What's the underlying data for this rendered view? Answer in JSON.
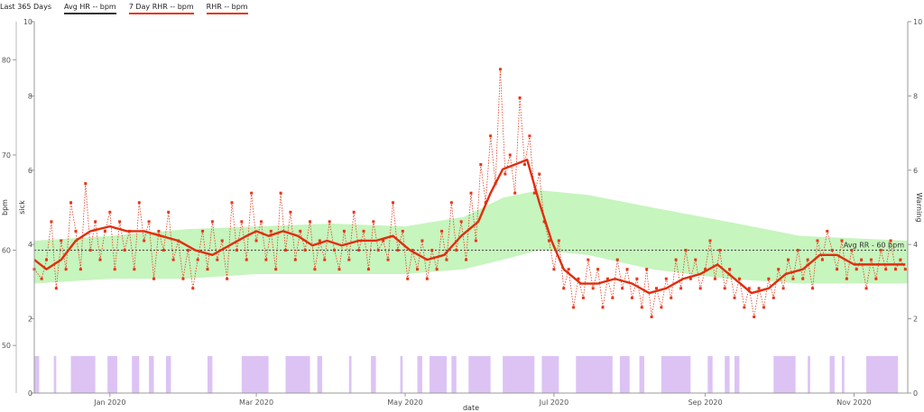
{
  "legend": {
    "period": "Last 365 Days",
    "items": [
      {
        "label": "Avg HR -- bpm",
        "color": "#333333"
      },
      {
        "label": "7 Day RHR -- bpm",
        "color": "#e8351a"
      },
      {
        "label": "RHR -- bpm",
        "color": "#e8351a"
      }
    ]
  },
  "annotation": {
    "text": "Avg RR - 60 bpm",
    "value": 60
  },
  "colors": {
    "rhr": "#e8351a",
    "smooth": "#e02e0e",
    "band": "#c6f5bd",
    "sick": "#dcc3f4",
    "avg": "#444444"
  },
  "chart_data": {
    "type": "line",
    "xlabel": "date",
    "ylabel_left": "bpm",
    "ylabel_left2": "sick",
    "ylabel_right": "Warning",
    "x_range": [
      "2019-12-01",
      "2020-11-23"
    ],
    "x_ticks": [
      "2020-01-01",
      "2020-03-01",
      "2020-05-01",
      "2020-07-01",
      "2020-09-01",
      "2020-11-01"
    ],
    "x_tick_labels": [
      "Jan 2020",
      "Mar 2020",
      "May 2020",
      "Jul 2020",
      "Sep 2020",
      "Nov 2020"
    ],
    "bpm_axis": {
      "range": [
        45,
        84
      ],
      "ticks": [
        50,
        60,
        70,
        80
      ]
    },
    "sick_axis": {
      "range": [
        0,
        10
      ],
      "ticks": [
        0,
        2,
        4,
        6,
        8,
        10
      ]
    },
    "warning_axis": {
      "range": [
        0,
        10
      ],
      "ticks": [
        0,
        2,
        4,
        6,
        8,
        10
      ]
    },
    "avg_rr_bpm": 60,
    "rhr": [
      [
        "2019-12-01",
        58
      ],
      [
        "2019-12-04",
        57
      ],
      [
        "2019-12-06",
        59
      ],
      [
        "2019-12-08",
        63
      ],
      [
        "2019-12-10",
        56
      ],
      [
        "2019-12-12",
        61
      ],
      [
        "2019-12-14",
        58
      ],
      [
        "2019-12-16",
        65
      ],
      [
        "2019-12-18",
        62
      ],
      [
        "2019-12-20",
        58
      ],
      [
        "2019-12-22",
        67
      ],
      [
        "2019-12-24",
        60
      ],
      [
        "2019-12-26",
        63
      ],
      [
        "2019-12-28",
        59
      ],
      [
        "2019-12-30",
        62
      ],
      [
        "2020-01-01",
        64
      ],
      [
        "2020-01-03",
        58
      ],
      [
        "2020-01-05",
        63
      ],
      [
        "2020-01-07",
        60
      ],
      [
        "2020-01-09",
        62
      ],
      [
        "2020-01-11",
        58
      ],
      [
        "2020-01-13",
        65
      ],
      [
        "2020-01-15",
        61
      ],
      [
        "2020-01-17",
        63
      ],
      [
        "2020-01-19",
        57
      ],
      [
        "2020-01-21",
        62
      ],
      [
        "2020-01-23",
        60
      ],
      [
        "2020-01-25",
        64
      ],
      [
        "2020-01-27",
        59
      ],
      [
        "2020-01-29",
        61
      ],
      [
        "2020-01-31",
        57
      ],
      [
        "2020-02-02",
        60
      ],
      [
        "2020-02-04",
        56
      ],
      [
        "2020-02-06",
        59
      ],
      [
        "2020-02-08",
        62
      ],
      [
        "2020-02-10",
        58
      ],
      [
        "2020-02-12",
        63
      ],
      [
        "2020-02-14",
        59
      ],
      [
        "2020-02-16",
        61
      ],
      [
        "2020-02-18",
        57
      ],
      [
        "2020-02-20",
        65
      ],
      [
        "2020-02-22",
        60
      ],
      [
        "2020-02-24",
        63
      ],
      [
        "2020-02-26",
        59
      ],
      [
        "2020-02-28",
        66
      ],
      [
        "2020-03-01",
        61
      ],
      [
        "2020-03-03",
        63
      ],
      [
        "2020-03-05",
        59
      ],
      [
        "2020-03-07",
        62
      ],
      [
        "2020-03-09",
        58
      ],
      [
        "2020-03-11",
        66
      ],
      [
        "2020-03-13",
        60
      ],
      [
        "2020-03-15",
        64
      ],
      [
        "2020-03-17",
        59
      ],
      [
        "2020-03-19",
        62
      ],
      [
        "2020-03-21",
        60
      ],
      [
        "2020-03-23",
        63
      ],
      [
        "2020-03-25",
        58
      ],
      [
        "2020-03-27",
        61
      ],
      [
        "2020-03-29",
        59
      ],
      [
        "2020-03-31",
        63
      ],
      [
        "2020-04-02",
        60
      ],
      [
        "2020-04-04",
        58
      ],
      [
        "2020-04-06",
        62
      ],
      [
        "2020-04-08",
        59
      ],
      [
        "2020-04-10",
        64
      ],
      [
        "2020-04-12",
        60
      ],
      [
        "2020-04-14",
        62
      ],
      [
        "2020-04-16",
        58
      ],
      [
        "2020-04-18",
        63
      ],
      [
        "2020-04-20",
        60
      ],
      [
        "2020-04-22",
        61
      ],
      [
        "2020-04-24",
        59
      ],
      [
        "2020-04-26",
        65
      ],
      [
        "2020-04-28",
        60
      ],
      [
        "2020-04-30",
        62
      ],
      [
        "2020-05-02",
        57
      ],
      [
        "2020-05-04",
        60
      ],
      [
        "2020-05-06",
        58
      ],
      [
        "2020-05-08",
        61
      ],
      [
        "2020-05-10",
        57
      ],
      [
        "2020-05-12",
        60
      ],
      [
        "2020-05-14",
        58
      ],
      [
        "2020-05-16",
        62
      ],
      [
        "2020-05-18",
        59
      ],
      [
        "2020-05-20",
        65
      ],
      [
        "2020-05-22",
        60
      ],
      [
        "2020-05-24",
        63
      ],
      [
        "2020-05-26",
        59
      ],
      [
        "2020-05-28",
        66
      ],
      [
        "2020-05-30",
        61
      ],
      [
        "2020-06-01",
        69
      ],
      [
        "2020-06-03",
        65
      ],
      [
        "2020-06-05",
        72
      ],
      [
        "2020-06-07",
        67
      ],
      [
        "2020-06-09",
        79
      ],
      [
        "2020-06-11",
        68
      ],
      [
        "2020-06-13",
        70
      ],
      [
        "2020-06-15",
        66
      ],
      [
        "2020-06-17",
        76
      ],
      [
        "2020-06-19",
        69
      ],
      [
        "2020-06-21",
        72
      ],
      [
        "2020-06-23",
        66
      ],
      [
        "2020-06-25",
        68
      ],
      [
        "2020-06-27",
        63
      ],
      [
        "2020-06-29",
        61
      ],
      [
        "2020-07-01",
        58
      ],
      [
        "2020-07-03",
        61
      ],
      [
        "2020-07-05",
        56
      ],
      [
        "2020-07-07",
        58
      ],
      [
        "2020-07-09",
        54
      ],
      [
        "2020-07-11",
        57
      ],
      [
        "2020-07-13",
        55
      ],
      [
        "2020-07-15",
        59
      ],
      [
        "2020-07-17",
        56
      ],
      [
        "2020-07-19",
        58
      ],
      [
        "2020-07-21",
        54
      ],
      [
        "2020-07-23",
        57
      ],
      [
        "2020-07-25",
        55
      ],
      [
        "2020-07-27",
        59
      ],
      [
        "2020-07-29",
        56
      ],
      [
        "2020-07-31",
        58
      ],
      [
        "2020-08-02",
        55
      ],
      [
        "2020-08-04",
        57
      ],
      [
        "2020-08-06",
        54
      ],
      [
        "2020-08-08",
        58
      ],
      [
        "2020-08-10",
        53
      ],
      [
        "2020-08-12",
        56
      ],
      [
        "2020-08-14",
        54
      ],
      [
        "2020-08-16",
        57
      ],
      [
        "2020-08-18",
        55
      ],
      [
        "2020-08-20",
        59
      ],
      [
        "2020-08-22",
        56
      ],
      [
        "2020-08-24",
        60
      ],
      [
        "2020-08-26",
        57
      ],
      [
        "2020-08-28",
        59
      ],
      [
        "2020-08-30",
        56
      ],
      [
        "2020-09-01",
        58
      ],
      [
        "2020-09-03",
        61
      ],
      [
        "2020-09-05",
        57
      ],
      [
        "2020-09-07",
        60
      ],
      [
        "2020-09-09",
        56
      ],
      [
        "2020-09-11",
        58
      ],
      [
        "2020-09-13",
        55
      ],
      [
        "2020-09-15",
        57
      ],
      [
        "2020-09-17",
        54
      ],
      [
        "2020-09-19",
        56
      ],
      [
        "2020-09-21",
        53
      ],
      [
        "2020-09-23",
        56
      ],
      [
        "2020-09-25",
        54
      ],
      [
        "2020-09-27",
        57
      ],
      [
        "2020-09-29",
        55
      ],
      [
        "2020-10-01",
        58
      ],
      [
        "2020-10-03",
        56
      ],
      [
        "2020-10-05",
        59
      ],
      [
        "2020-10-07",
        57
      ],
      [
        "2020-10-09",
        60
      ],
      [
        "2020-10-11",
        57
      ],
      [
        "2020-10-13",
        59
      ],
      [
        "2020-10-15",
        56
      ],
      [
        "2020-10-17",
        61
      ],
      [
        "2020-10-19",
        59
      ],
      [
        "2020-10-21",
        62
      ],
      [
        "2020-10-23",
        60
      ],
      [
        "2020-10-25",
        58
      ],
      [
        "2020-10-27",
        61
      ],
      [
        "2020-10-29",
        57
      ],
      [
        "2020-10-31",
        60
      ],
      [
        "2020-11-02",
        58
      ],
      [
        "2020-11-04",
        59
      ],
      [
        "2020-11-06",
        56
      ],
      [
        "2020-11-08",
        59
      ],
      [
        "2020-11-10",
        57
      ],
      [
        "2020-11-12",
        60
      ],
      [
        "2020-11-14",
        58
      ],
      [
        "2020-11-16",
        61
      ],
      [
        "2020-11-18",
        58
      ],
      [
        "2020-11-20",
        59
      ],
      [
        "2020-11-22",
        58
      ]
    ],
    "rhr_7day": [
      [
        "2019-12-01",
        59
      ],
      [
        "2019-12-06",
        58
      ],
      [
        "2019-12-12",
        59
      ],
      [
        "2019-12-18",
        61
      ],
      [
        "2019-12-24",
        62
      ],
      [
        "2020-01-01",
        62.5
      ],
      [
        "2020-01-08",
        62
      ],
      [
        "2020-01-15",
        62
      ],
      [
        "2020-01-22",
        61.5
      ],
      [
        "2020-01-29",
        61
      ],
      [
        "2020-02-05",
        60
      ],
      [
        "2020-02-12",
        59.5
      ],
      [
        "2020-02-19",
        60.5
      ],
      [
        "2020-02-26",
        61.5
      ],
      [
        "2020-03-01",
        62
      ],
      [
        "2020-03-06",
        61.5
      ],
      [
        "2020-03-12",
        62
      ],
      [
        "2020-03-18",
        61.5
      ],
      [
        "2020-03-24",
        60.5
      ],
      [
        "2020-03-30",
        61
      ],
      [
        "2020-04-05",
        60.5
      ],
      [
        "2020-04-12",
        61
      ],
      [
        "2020-04-19",
        61
      ],
      [
        "2020-04-26",
        61.5
      ],
      [
        "2020-05-03",
        60
      ],
      [
        "2020-05-10",
        59
      ],
      [
        "2020-05-17",
        59.5
      ],
      [
        "2020-05-24",
        61.5
      ],
      [
        "2020-05-31",
        63
      ],
      [
        "2020-06-05",
        66
      ],
      [
        "2020-06-10",
        68.5
      ],
      [
        "2020-06-15",
        69
      ],
      [
        "2020-06-20",
        69.5
      ],
      [
        "2020-06-25",
        65
      ],
      [
        "2020-06-30",
        61
      ],
      [
        "2020-07-05",
        58
      ],
      [
        "2020-07-12",
        56.5
      ],
      [
        "2020-07-19",
        56.5
      ],
      [
        "2020-07-26",
        57
      ],
      [
        "2020-08-02",
        56.5
      ],
      [
        "2020-08-09",
        55.5
      ],
      [
        "2020-08-16",
        56
      ],
      [
        "2020-08-23",
        57
      ],
      [
        "2020-08-30",
        57.5
      ],
      [
        "2020-09-06",
        58.5
      ],
      [
        "2020-09-13",
        57
      ],
      [
        "2020-09-20",
        55.5
      ],
      [
        "2020-09-27",
        56
      ],
      [
        "2020-10-04",
        57.5
      ],
      [
        "2020-10-11",
        58
      ],
      [
        "2020-10-18",
        59.5
      ],
      [
        "2020-10-25",
        59.5
      ],
      [
        "2020-11-01",
        58.5
      ],
      [
        "2020-11-08",
        58.5
      ],
      [
        "2020-11-15",
        58.5
      ],
      [
        "2020-11-22",
        58.5
      ]
    ],
    "avg_band": [
      [
        "2019-12-01",
        56.5,
        61
      ],
      [
        "2020-01-01",
        57,
        61.5
      ],
      [
        "2020-02-01",
        57,
        62.2
      ],
      [
        "2020-03-01",
        57.5,
        62.5
      ],
      [
        "2020-04-01",
        57.5,
        62.8
      ],
      [
        "2020-05-01",
        57.5,
        62.5
      ],
      [
        "2020-05-25",
        58,
        63.5
      ],
      [
        "2020-06-10",
        59,
        65.5
      ],
      [
        "2020-06-25",
        60,
        66.3
      ],
      [
        "2020-07-15",
        59.5,
        65.8
      ],
      [
        "2020-08-10",
        58,
        64.5
      ],
      [
        "2020-09-10",
        57,
        63
      ],
      [
        "2020-10-10",
        56.5,
        61.5
      ],
      [
        "2020-11-23",
        56.5,
        61
      ]
    ],
    "sick_periods": [
      [
        "2019-12-01",
        "2019-12-03"
      ],
      [
        "2019-12-09",
        "2019-12-10"
      ],
      [
        "2019-12-16",
        "2019-12-26"
      ],
      [
        "2019-12-31",
        "2020-01-04"
      ],
      [
        "2020-01-10",
        "2020-01-13"
      ],
      [
        "2020-01-17",
        "2020-01-19"
      ],
      [
        "2020-01-24",
        "2020-01-26"
      ],
      [
        "2020-02-10",
        "2020-02-12"
      ],
      [
        "2020-02-24",
        "2020-03-06"
      ],
      [
        "2020-03-13",
        "2020-03-23"
      ],
      [
        "2020-03-26",
        "2020-03-28"
      ],
      [
        "2020-04-08",
        "2020-04-09"
      ],
      [
        "2020-04-17",
        "2020-04-19"
      ],
      [
        "2020-04-29",
        "2020-04-30"
      ],
      [
        "2020-05-06",
        "2020-05-08"
      ],
      [
        "2020-05-11",
        "2020-05-18"
      ],
      [
        "2020-05-20",
        "2020-05-22"
      ],
      [
        "2020-05-27",
        "2020-06-05"
      ],
      [
        "2020-06-10",
        "2020-06-23"
      ],
      [
        "2020-06-26",
        "2020-07-03"
      ],
      [
        "2020-07-10",
        "2020-07-25"
      ],
      [
        "2020-07-28",
        "2020-08-01"
      ],
      [
        "2020-08-05",
        "2020-08-07"
      ],
      [
        "2020-08-14",
        "2020-08-26"
      ],
      [
        "2020-09-02",
        "2020-09-04"
      ],
      [
        "2020-09-09",
        "2020-09-11"
      ],
      [
        "2020-09-13",
        "2020-09-15"
      ],
      [
        "2020-09-29",
        "2020-10-08"
      ],
      [
        "2020-10-13",
        "2020-10-14"
      ],
      [
        "2020-10-22",
        "2020-10-24"
      ],
      [
        "2020-10-27",
        "2020-10-28"
      ],
      [
        "2020-11-06",
        "2020-11-19"
      ]
    ]
  }
}
